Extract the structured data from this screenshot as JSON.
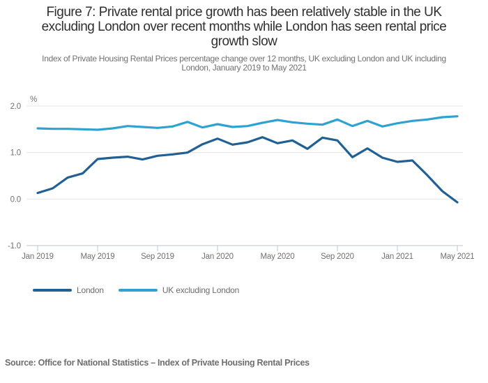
{
  "figure": {
    "title_lines": [
      "Figure 7: Private rental price growth has been relatively stable in the UK",
      "excluding London over recent months while London has seen rental price",
      "growth slow"
    ],
    "subtitle_lines": [
      "Index of Private Housing Rental Prices percentage change over 12 months, UK excluding London and UK including",
      "London, January 2019 to May 2021"
    ],
    "source": "Source: Office for National Statistics – Index of Private Housing Rental Prices"
  },
  "chart_data": {
    "type": "line",
    "y_axis_unit": "%",
    "grid": "horizontal",
    "legend_position": "bottom-left",
    "ylim": [
      -1.0,
      2.0
    ],
    "y_ticks": [
      2,
      1,
      0,
      -1
    ],
    "y_tick_labels": [
      "2.0",
      "1.0",
      "0.0",
      "-1.0"
    ],
    "x_tick_labels": [
      "Jan 2019",
      "May 2019",
      "Sep 2019",
      "Jan 2020",
      "May 2020",
      "Sep 2020",
      "Jan 2021",
      "May 2021"
    ],
    "months": [
      "Jan 2019",
      "Feb 2019",
      "Mar 2019",
      "Apr 2019",
      "May 2019",
      "Jun 2019",
      "Jul 2019",
      "Aug 2019",
      "Sep 2019",
      "Oct 2019",
      "Nov 2019",
      "Dec 2019",
      "Jan 2020",
      "Feb 2020",
      "Mar 2020",
      "Apr 2020",
      "May 2020",
      "Jun 2020",
      "Jul 2020",
      "Aug 2020",
      "Sep 2020",
      "Oct 2020",
      "Nov 2020",
      "Dec 2020",
      "Jan 2021",
      "Feb 2021",
      "Mar 2021",
      "Apr 2021",
      "May 2021"
    ],
    "series": [
      {
        "name": "London",
        "color": "#206095",
        "values": [
          0.13,
          0.23,
          0.46,
          0.55,
          0.86,
          0.89,
          0.91,
          0.85,
          0.93,
          0.96,
          1.0,
          1.18,
          1.3,
          1.17,
          1.22,
          1.33,
          1.2,
          1.26,
          1.08,
          1.32,
          1.26,
          0.9,
          1.09,
          0.89,
          0.8,
          0.83,
          0.51,
          0.17,
          -0.07
        ]
      },
      {
        "name": "UK excluding London",
        "color": "#2EA3D1",
        "values": [
          1.52,
          1.51,
          1.51,
          1.5,
          1.49,
          1.52,
          1.57,
          1.55,
          1.53,
          1.56,
          1.66,
          1.54,
          1.61,
          1.55,
          1.57,
          1.64,
          1.7,
          1.65,
          1.62,
          1.6,
          1.71,
          1.57,
          1.68,
          1.56,
          1.63,
          1.68,
          1.71,
          1.76,
          1.78
        ]
      }
    ]
  }
}
